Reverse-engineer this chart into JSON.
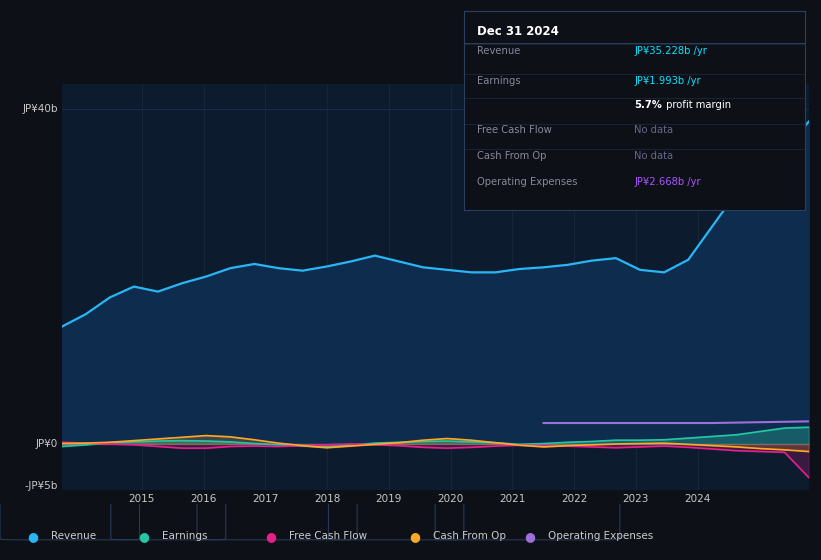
{
  "background_color": "#0d1117",
  "plot_bg_color": "#0d1b2e",
  "ylim": [
    -5.5,
    43
  ],
  "xlim": [
    2013.7,
    2025.8
  ],
  "xticks": [
    2015,
    2016,
    2017,
    2018,
    2019,
    2020,
    2021,
    2022,
    2023,
    2024
  ],
  "ylabel_top": "JP¥40b",
  "ylabel_zero": "JP¥0",
  "ylabel_neg": "-JP¥5b",
  "info_box_title": "Dec 31 2024",
  "legend": [
    {
      "label": "Revenue",
      "color": "#29b6f6"
    },
    {
      "label": "Earnings",
      "color": "#26c6a5"
    },
    {
      "label": "Free Cash Flow",
      "color": "#e91e8c"
    },
    {
      "label": "Cash From Op",
      "color": "#ffa726"
    },
    {
      "label": "Operating Expenses",
      "color": "#9c6fdb"
    }
  ],
  "revenue": [
    14.0,
    15.5,
    17.5,
    18.8,
    18.2,
    19.2,
    20.0,
    21.0,
    21.5,
    21.0,
    20.7,
    21.2,
    21.8,
    22.5,
    21.8,
    21.1,
    20.8,
    20.5,
    20.5,
    20.9,
    21.1,
    21.4,
    21.9,
    22.2,
    20.8,
    20.5,
    22.0,
    26.0,
    30.0,
    33.0,
    35.2,
    38.5
  ],
  "earnings": [
    -0.3,
    -0.1,
    0.15,
    0.25,
    0.35,
    0.4,
    0.35,
    0.25,
    0.05,
    -0.1,
    -0.25,
    -0.35,
    -0.15,
    0.1,
    0.2,
    0.3,
    0.35,
    0.25,
    0.15,
    -0.05,
    0.05,
    0.2,
    0.3,
    0.45,
    0.45,
    0.5,
    0.7,
    0.9,
    1.1,
    1.5,
    1.9,
    2.0
  ],
  "free_cash_flow": [
    0.2,
    0.1,
    0.0,
    -0.1,
    -0.3,
    -0.5,
    -0.5,
    -0.3,
    -0.25,
    -0.3,
    -0.2,
    -0.1,
    0.0,
    -0.1,
    -0.2,
    -0.4,
    -0.5,
    -0.4,
    -0.25,
    -0.15,
    -0.2,
    -0.25,
    -0.35,
    -0.45,
    -0.35,
    -0.25,
    -0.4,
    -0.6,
    -0.8,
    -0.9,
    -1.0,
    -4.0
  ],
  "cash_from_op": [
    0.05,
    0.1,
    0.2,
    0.4,
    0.6,
    0.8,
    1.0,
    0.85,
    0.5,
    0.1,
    -0.2,
    -0.45,
    -0.25,
    -0.05,
    0.15,
    0.45,
    0.65,
    0.45,
    0.15,
    -0.15,
    -0.35,
    -0.2,
    -0.1,
    0.0,
    0.05,
    0.1,
    -0.05,
    -0.2,
    -0.35,
    -0.55,
    -0.7,
    -0.9
  ],
  "operating_expenses": [
    null,
    null,
    null,
    null,
    null,
    null,
    null,
    null,
    null,
    null,
    null,
    null,
    null,
    null,
    null,
    null,
    null,
    null,
    null,
    null,
    2.5,
    2.5,
    2.5,
    2.5,
    2.5,
    2.5,
    2.5,
    2.5,
    2.55,
    2.6,
    2.65,
    2.7
  ],
  "x_start": 2013.7,
  "x_end": 2025.8,
  "n_points": 32
}
